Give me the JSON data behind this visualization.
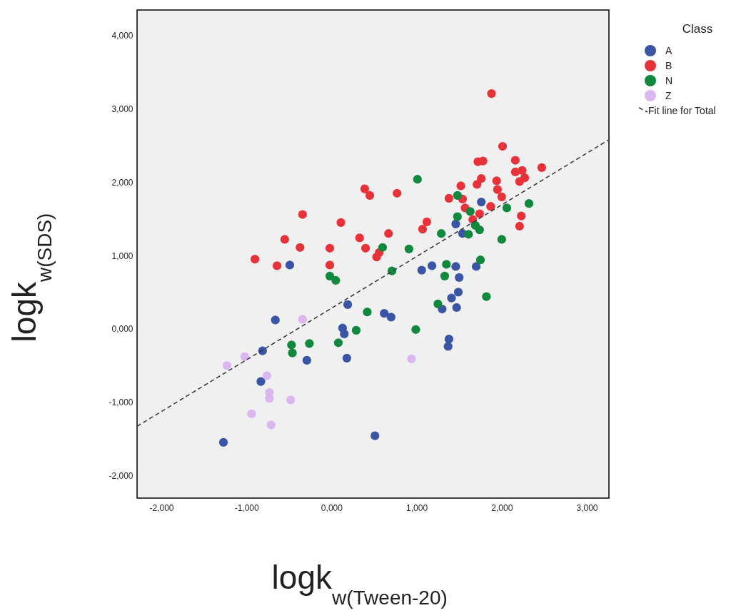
{
  "chart_data": {
    "type": "scatter",
    "xlabel": "logk$_{w(Tween-20)}$",
    "ylabel": "logk$_{w(SDS)}$",
    "legend_title": "Class",
    "legend": "top right",
    "grid": false,
    "xlim": [
      -2.285,
      3.26
    ],
    "ylim": [
      -2.31,
      4.35
    ],
    "xticks": [
      {
        "value": -2,
        "label": "-2,000"
      },
      {
        "value": -1,
        "label": "-1,000"
      },
      {
        "value": 0,
        "label": "0,000"
      },
      {
        "value": 1,
        "label": "1,000"
      },
      {
        "value": 2,
        "label": "2,000"
      },
      {
        "value": 3,
        "label": "3,000"
      }
    ],
    "yticks": [
      {
        "value": -2,
        "label": "-2,000"
      },
      {
        "value": -1,
        "label": "-1,000"
      },
      {
        "value": 0,
        "label": "0,000"
      },
      {
        "value": 1,
        "label": "1,000"
      },
      {
        "value": 2,
        "label": "2,000"
      },
      {
        "value": 3,
        "label": "3,000"
      },
      {
        "value": 4,
        "label": "4,000"
      }
    ],
    "series": [
      {
        "name": "A",
        "color": "#3b55a6",
        "marker": "circle",
        "x": [
          -0.49,
          -0.66,
          -0.81,
          -0.83,
          -1.27,
          -0.29,
          0.19,
          0.13,
          0.15,
          0.18,
          0.62,
          0.7,
          0.51,
          1.06,
          1.18,
          1.46,
          1.7,
          1.5,
          1.49,
          1.41,
          1.3,
          1.47,
          1.38,
          1.37,
          1.76,
          1.46,
          1.54
        ],
        "values": [
          0.87,
          0.12,
          -0.3,
          -0.72,
          -1.55,
          -0.43,
          0.33,
          0.01,
          -0.07,
          -0.4,
          0.21,
          0.16,
          -1.46,
          0.8,
          0.86,
          0.85,
          0.85,
          0.7,
          0.5,
          0.42,
          0.27,
          0.29,
          -0.14,
          -0.24,
          1.73,
          1.43,
          1.3
        ]
      },
      {
        "name": "B",
        "color": "#e8323a",
        "marker": "circle",
        "x": [
          -0.9,
          -0.64,
          -0.55,
          -0.37,
          -0.34,
          -0.02,
          -0.02,
          0.11,
          0.33,
          0.4,
          0.39,
          0.45,
          0.53,
          0.56,
          0.67,
          0.77,
          2.01,
          1.72,
          1.78,
          2.16,
          2.47,
          2.16,
          2.24,
          2.27,
          2.21,
          1.76,
          1.71,
          1.94,
          1.95,
          2.0,
          1.52,
          1.38,
          1.54,
          1.57,
          1.87,
          1.74,
          1.66,
          1.12,
          1.07,
          2.23,
          2.21,
          1.88
        ],
        "values": [
          0.95,
          0.86,
          1.22,
          1.11,
          1.56,
          1.1,
          0.87,
          1.45,
          1.24,
          1.1,
          1.91,
          1.82,
          0.98,
          1.04,
          1.3,
          1.85,
          2.49,
          2.28,
          2.29,
          2.3,
          2.2,
          2.14,
          2.16,
          2.06,
          2.01,
          2.05,
          1.97,
          2.02,
          1.9,
          1.8,
          1.95,
          1.78,
          1.77,
          1.65,
          1.67,
          1.57,
          1.49,
          1.46,
          1.36,
          1.54,
          1.4,
          3.21
        ]
      },
      {
        "name": "N",
        "color": "#10893e",
        "marker": "circle",
        "x": [
          0.6,
          0.91,
          -0.02,
          0.05,
          0.71,
          1.01,
          1.48,
          1.63,
          1.48,
          1.69,
          1.74,
          1.61,
          1.29,
          2.06,
          2.32,
          2.0,
          1.75,
          1.35,
          1.33,
          1.25,
          1.82,
          0.99,
          0.42,
          0.29,
          0.08,
          -0.26,
          -0.47,
          -0.46
        ],
        "values": [
          1.11,
          1.09,
          0.72,
          0.66,
          0.79,
          2.04,
          1.82,
          1.6,
          1.53,
          1.41,
          1.35,
          1.29,
          1.3,
          1.65,
          1.71,
          1.22,
          0.94,
          0.88,
          0.72,
          0.34,
          0.44,
          -0.01,
          0.23,
          -0.02,
          -0.19,
          -0.2,
          -0.22,
          -0.33
        ]
      },
      {
        "name": "Z",
        "color": "#dbb7ef",
        "marker": "circle",
        "x": [
          -0.34,
          -1.02,
          -1.23,
          -0.76,
          -0.73,
          -0.73,
          -0.48,
          -0.94,
          -0.71,
          0.94
        ],
        "values": [
          0.13,
          -0.38,
          -0.5,
          -0.64,
          -0.87,
          -0.95,
          -0.97,
          -1.16,
          -1.31,
          -0.41
        ]
      },
      {
        "name": "Fit line for Total",
        "type": "line",
        "line_style": "dashed",
        "marker": "none",
        "color": "#333333",
        "x": [
          -2.285,
          3.26
        ],
        "values": [
          -1.33,
          2.58
        ]
      }
    ]
  }
}
